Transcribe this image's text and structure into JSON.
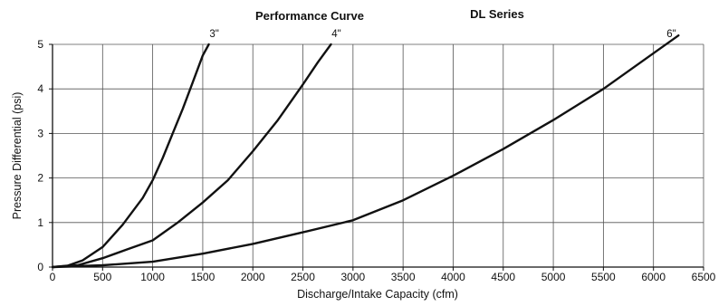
{
  "chart_data": {
    "type": "line",
    "title": "Performance Curve",
    "subtitle": "DL Series",
    "xlabel": "Discharge/Intake Capacity (cfm)",
    "ylabel": "Pressure Differential (psi)",
    "xlim": [
      0,
      6500
    ],
    "ylim": [
      0,
      5
    ],
    "xticks": [
      0,
      500,
      1000,
      1500,
      2000,
      2500,
      3000,
      3500,
      4000,
      4500,
      5000,
      5500,
      6000,
      6500
    ],
    "yticks": [
      0,
      1,
      2,
      3,
      4,
      5
    ],
    "grid": true,
    "series": [
      {
        "name": "3\"",
        "points": [
          [
            0,
            0
          ],
          [
            150,
            0.03
          ],
          [
            300,
            0.15
          ],
          [
            500,
            0.45
          ],
          [
            700,
            0.95
          ],
          [
            900,
            1.55
          ],
          [
            1000,
            1.95
          ],
          [
            1100,
            2.45
          ],
          [
            1200,
            3.0
          ],
          [
            1300,
            3.55
          ],
          [
            1400,
            4.15
          ],
          [
            1500,
            4.75
          ],
          [
            1560,
            5.0
          ]
        ]
      },
      {
        "name": "4\"",
        "points": [
          [
            0,
            0
          ],
          [
            250,
            0.04
          ],
          [
            500,
            0.2
          ],
          [
            750,
            0.4
          ],
          [
            1000,
            0.6
          ],
          [
            1250,
            1.0
          ],
          [
            1500,
            1.45
          ],
          [
            1750,
            1.95
          ],
          [
            2000,
            2.6
          ],
          [
            2250,
            3.3
          ],
          [
            2500,
            4.1
          ],
          [
            2650,
            4.6
          ],
          [
            2780,
            5.0
          ]
        ]
      },
      {
        "name": "6\"",
        "points": [
          [
            0,
            0
          ],
          [
            500,
            0.04
          ],
          [
            1000,
            0.12
          ],
          [
            1500,
            0.3
          ],
          [
            2000,
            0.52
          ],
          [
            2500,
            0.78
          ],
          [
            3000,
            1.05
          ],
          [
            3500,
            1.5
          ],
          [
            4000,
            2.05
          ],
          [
            4500,
            2.65
          ],
          [
            5000,
            3.3
          ],
          [
            5500,
            4.0
          ],
          [
            6000,
            4.8
          ],
          [
            6250,
            5.2
          ]
        ]
      }
    ]
  }
}
